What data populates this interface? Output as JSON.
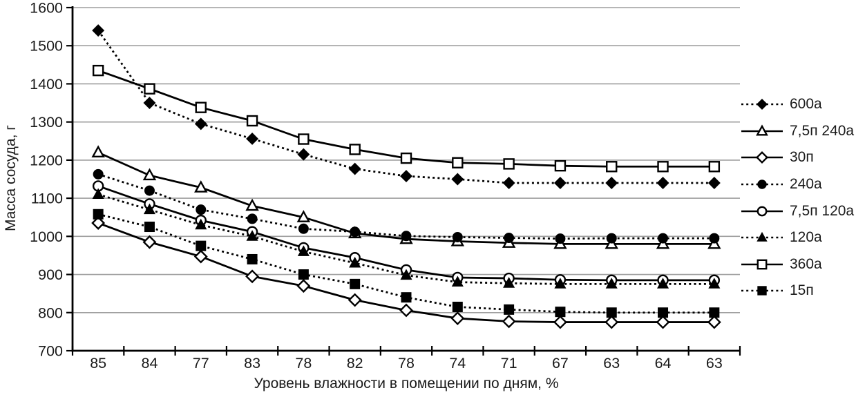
{
  "chart_data": {
    "type": "line",
    "title": "",
    "xlabel": "Уровень влажности в помещении по дням, %",
    "ylabel": "Масса сосуда, г",
    "categories": [
      "85",
      "84",
      "77",
      "83",
      "78",
      "82",
      "78",
      "74",
      "71",
      "67",
      "63",
      "64",
      "63"
    ],
    "yticks": [
      700,
      800,
      900,
      1000,
      1100,
      1200,
      1300,
      1400,
      1500,
      1600
    ],
    "ylim": [
      700,
      1600
    ],
    "grid": true,
    "legend_position": "right",
    "colors": {
      "foreground": "#000000",
      "gridline": "#9e9e9e",
      "background": "#ffffff",
      "text": "#1a1a1a"
    },
    "series": [
      {
        "name": "600а",
        "line": "dotted",
        "marker": "filled-diamond",
        "values": [
          1540,
          1350,
          1295,
          1256,
          1215,
          1177,
          1158,
          1150,
          1140,
          1140,
          1140,
          1140,
          1140
        ]
      },
      {
        "name": "7,5п 240а",
        "line": "solid",
        "marker": "open-triangle",
        "values": [
          1220,
          1160,
          1128,
          1080,
          1050,
          1008,
          993,
          987,
          983,
          980,
          980,
          980,
          980
        ]
      },
      {
        "name": "30п",
        "line": "solid",
        "marker": "open-diamond",
        "values": [
          1035,
          985,
          947,
          895,
          870,
          833,
          806,
          785,
          777,
          775,
          775,
          775,
          775
        ]
      },
      {
        "name": "240а",
        "line": "dotted",
        "marker": "filled-circle",
        "values": [
          1163,
          1120,
          1070,
          1046,
          1020,
          1012,
          1001,
          998,
          996,
          994,
          995,
          995,
          995
        ]
      },
      {
        "name": "7,5п 120а",
        "line": "solid",
        "marker": "open-circle",
        "values": [
          1132,
          1085,
          1042,
          1012,
          970,
          944,
          912,
          892,
          890,
          886,
          885,
          885,
          885
        ]
      },
      {
        "name": "120а",
        "line": "dotted",
        "marker": "filled-triangle",
        "values": [
          1110,
          1070,
          1030,
          1000,
          960,
          930,
          898,
          880,
          877,
          875,
          875,
          875,
          875
        ]
      },
      {
        "name": "360а",
        "line": "solid",
        "marker": "open-square",
        "values": [
          1435,
          1387,
          1338,
          1303,
          1255,
          1228,
          1205,
          1193,
          1190,
          1185,
          1183,
          1183,
          1183
        ]
      },
      {
        "name": "15п",
        "line": "dotted",
        "marker": "filled-square",
        "values": [
          1058,
          1025,
          975,
          940,
          900,
          875,
          840,
          815,
          808,
          802,
          800,
          800,
          800
        ]
      }
    ]
  }
}
